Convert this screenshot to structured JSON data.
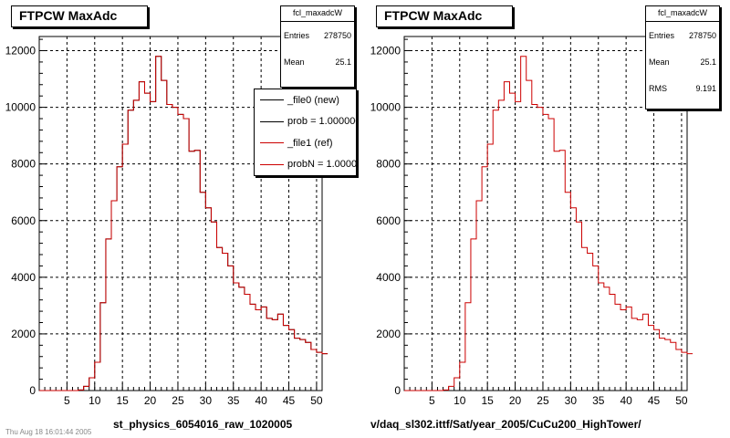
{
  "chart_data": [
    {
      "type": "histogram",
      "title": "FTPCW MaxAdc",
      "stats": {
        "name": "fcl_maxadcW",
        "entries_label": "Entries",
        "entries": "278750",
        "mean_label": "Mean",
        "mean": "25.1"
      },
      "legend": [
        {
          "label": "_file0 (new)",
          "color": "#000000"
        },
        {
          "label": "prob = 1.000000",
          "color": "#000000"
        },
        {
          "label": "_file1 (ref)",
          "color": "#cc0000"
        },
        {
          "label": "probN = 1.000000",
          "color": "#cc0000"
        }
      ],
      "xlabel": "st_physics_6054016_raw_1020005",
      "xlim": [
        0,
        51
      ],
      "ylim": [
        0,
        12500
      ],
      "xticks": [
        5,
        10,
        15,
        20,
        25,
        30,
        35,
        40,
        45,
        50
      ],
      "yticks": [
        0,
        2000,
        4000,
        6000,
        8000,
        10000,
        12000
      ],
      "grid": true,
      "bin_width": 1,
      "series": [
        {
          "color": "#000000",
          "values": [
            0,
            0,
            0,
            0,
            0,
            0,
            0,
            20,
            150,
            450,
            1000,
            3100,
            5350,
            6700,
            7900,
            8700,
            9900,
            10250,
            10900,
            10500,
            10200,
            11800,
            10950,
            10100,
            10000,
            9750,
            9600,
            8450,
            8480,
            7000,
            6450,
            5950,
            5050,
            4850,
            4400,
            3800,
            3650,
            3400,
            3050,
            2850,
            2950,
            2550,
            2500,
            2700,
            2300,
            2150,
            1850,
            1800,
            1700,
            1450,
            1350,
            1300
          ]
        },
        {
          "color": "#cc0000",
          "values": [
            0,
            0,
            0,
            0,
            0,
            0,
            0,
            20,
            150,
            450,
            1000,
            3100,
            5350,
            6700,
            7900,
            8700,
            9900,
            10250,
            10900,
            10500,
            10200,
            11800,
            10950,
            10100,
            10000,
            9750,
            9600,
            8450,
            8480,
            7000,
            6450,
            5950,
            5050,
            4850,
            4400,
            3800,
            3650,
            3400,
            3050,
            2850,
            2950,
            2550,
            2500,
            2700,
            2300,
            2150,
            1850,
            1800,
            1700,
            1450,
            1350,
            1300
          ]
        }
      ]
    },
    {
      "type": "histogram",
      "title": "FTPCW MaxAdc",
      "stats": {
        "name": "fcl_maxadcW",
        "entries_label": "Entries",
        "entries": "278750",
        "mean_label": "Mean",
        "mean": "25.1",
        "rms_label": "RMS",
        "rms": "9.191"
      },
      "xlabel": "v/daq_sl302.ittf/Sat/year_2005/CuCu200_HighTower/",
      "xlim": [
        0,
        51
      ],
      "ylim": [
        0,
        12500
      ],
      "xticks": [
        5,
        10,
        15,
        20,
        25,
        30,
        35,
        40,
        45,
        50
      ],
      "yticks": [
        0,
        2000,
        4000,
        6000,
        8000,
        10000,
        12000
      ],
      "grid": true,
      "bin_width": 1,
      "series": [
        {
          "color": "#cc0000",
          "values": [
            0,
            0,
            0,
            0,
            0,
            0,
            0,
            20,
            150,
            450,
            1000,
            3100,
            5350,
            6700,
            7900,
            8700,
            9900,
            10250,
            10900,
            10500,
            10200,
            11800,
            10950,
            10100,
            10000,
            9750,
            9600,
            8450,
            8480,
            7000,
            6450,
            5950,
            5050,
            4850,
            4400,
            3800,
            3650,
            3400,
            3050,
            2850,
            2950,
            2550,
            2500,
            2700,
            2300,
            2150,
            1850,
            1800,
            1700,
            1450,
            1350,
            1300
          ]
        }
      ]
    }
  ],
  "footer_faint": "Thu Aug 18 16:01:44 2005"
}
